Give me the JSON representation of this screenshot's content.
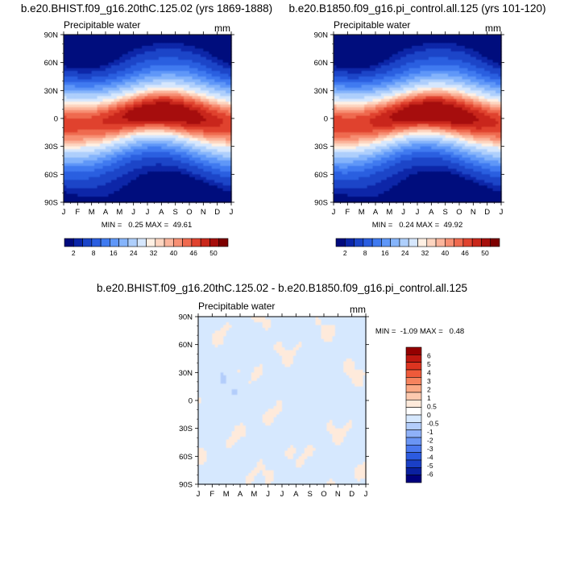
{
  "colors": {
    "precip_levels": [
      "#000a7d",
      "#0a25a8",
      "#1a44c8",
      "#2a5ee0",
      "#3f7af0",
      "#5f97f8",
      "#85b4fb",
      "#aecffc",
      "#d6e7fd",
      "#fff0e3",
      "#fdd5c0",
      "#fbb59c",
      "#f78f73",
      "#ef6a4f",
      "#e0432f",
      "#c9271a",
      "#a60f0c",
      "#7d0000"
    ],
    "diff_levels": [
      "#00007d",
      "#0a20a0",
      "#1a3fc6",
      "#2c5be0",
      "#4a78ee",
      "#6a95f4",
      "#8fb1f8",
      "#b3cdfb",
      "#d6e8fe",
      "#ffffff",
      "#feeadb",
      "#fdc9ae",
      "#fba985",
      "#f6835e",
      "#ef5a3a",
      "#dd3420",
      "#bf1810",
      "#940000"
    ],
    "contour": "#555555"
  },
  "panels": [
    {
      "title": "b.e20.BHIST.f09_g16.20thC.125.02 (yrs 1869-1888)",
      "left_label": "Precipitable water",
      "right_label": "mm",
      "stats": "MIN =   0.25 MAX =  49.61"
    },
    {
      "title": "b.e20.B1850.f09_g16.pi_control.all.125 (yrs 101-120)",
      "left_label": "Precipitable water",
      "right_label": "mm",
      "stats": "MIN =   0.24 MAX =  49.92"
    },
    {
      "title": "b.e20.BHIST.f09_g16.20thC.125.02 - b.e20.B1850.f09_g16.pi_control.all.125",
      "left_label": "Precipitable water",
      "right_label": "mm",
      "stats": "MIN =  -1.09 MAX =   0.48"
    }
  ],
  "chart_data": [
    {
      "type": "heatmap",
      "title": "b.e20.BHIST.f09_g16.20thC.125.02 (yrs 1869-1888)",
      "variable": "Precipitable water",
      "units": "mm",
      "x_ticks": [
        "J",
        "F",
        "M",
        "A",
        "M",
        "J",
        "J",
        "A",
        "S",
        "O",
        "N",
        "D",
        "J"
      ],
      "y_ticks": [
        "90N",
        "60N",
        "30N",
        "0",
        "30S",
        "60S",
        "90S"
      ],
      "ylim": [
        -90,
        90
      ],
      "min": 0.25,
      "max": 49.61,
      "colorbar_labels": [
        "2",
        "8",
        "16",
        "24",
        "32",
        "40",
        "46",
        "50"
      ]
    },
    {
      "type": "heatmap",
      "title": "b.e20.B1850.f09_g16.pi_control.all.125 (yrs 101-120)",
      "variable": "Precipitable water",
      "units": "mm",
      "x_ticks": [
        "J",
        "F",
        "M",
        "A",
        "M",
        "J",
        "J",
        "A",
        "S",
        "O",
        "N",
        "D",
        "J"
      ],
      "y_ticks": [
        "90N",
        "60N",
        "30N",
        "0",
        "30S",
        "60S",
        "90S"
      ],
      "ylim": [
        -90,
        90
      ],
      "min": 0.24,
      "max": 49.92,
      "colorbar_labels": [
        "2",
        "8",
        "16",
        "24",
        "32",
        "40",
        "46",
        "50"
      ]
    },
    {
      "type": "heatmap",
      "title": "b.e20.BHIST.f09_g16.20thC.125.02 - b.e20.B1850.f09_g16.pi_control.all.125",
      "variable": "Precipitable water",
      "units": "mm",
      "x_ticks": [
        "J",
        "F",
        "M",
        "A",
        "M",
        "J",
        "J",
        "A",
        "S",
        "O",
        "N",
        "D",
        "J"
      ],
      "y_ticks": [
        "90N",
        "60N",
        "30N",
        "0",
        "30S",
        "60S",
        "90S"
      ],
      "ylim": [
        -90,
        90
      ],
      "min": -1.09,
      "max": 0.48,
      "colorbar_labels": [
        "6",
        "5",
        "4",
        "3",
        "2",
        "1",
        "0.5",
        "0",
        "-0.5",
        "-1",
        "-2",
        "-3",
        "-4",
        "-5",
        "-6"
      ]
    }
  ]
}
